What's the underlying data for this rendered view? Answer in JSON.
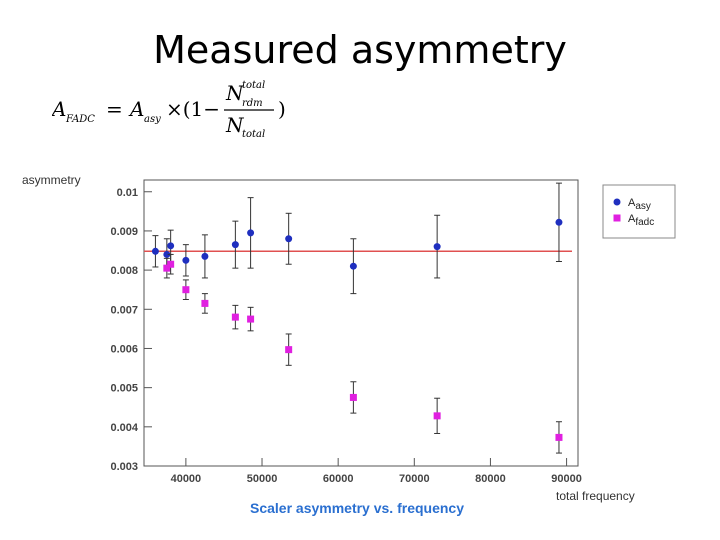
{
  "slide": {
    "title": "Measured asymmetry"
  },
  "formula": {
    "lhs": "A",
    "lhs_sub": "FADC",
    "eq": "=",
    "rhs_a": "A",
    "rhs_a_sub": "asy",
    "times": "×(1−",
    "num": "N",
    "num_sup": "total",
    "num_sub": "rdm",
    "den": "N",
    "den_sub": "total",
    "close": ")"
  },
  "chart_data": {
    "type": "scatter",
    "title": "Scaler asymmetry vs. frequency",
    "xlabel": "total frequency",
    "ylabel": "asymmetry",
    "xlim": [
      34500,
      91500
    ],
    "ylim": [
      0.003,
      0.0103
    ],
    "xticks": [
      40000,
      50000,
      60000,
      70000,
      80000,
      90000
    ],
    "yticks": [
      0.003,
      0.004,
      0.005,
      0.006,
      0.007,
      0.008,
      0.009,
      0.01
    ],
    "grid": false,
    "legend_position": "top-right",
    "reference_line": {
      "y": 0.00848,
      "color": "#e05050"
    },
    "series": [
      {
        "name": "A_asy",
        "color": "#1f2fbf",
        "marker": "circle",
        "x": [
          36000,
          37500,
          38000,
          40000,
          42500,
          46500,
          48500,
          53500,
          62000,
          73000,
          89000
        ],
        "y": [
          0.00848,
          0.0084,
          0.00862,
          0.00825,
          0.00835,
          0.00865,
          0.00895,
          0.0088,
          0.0081,
          0.0086,
          0.00922
        ],
        "err": [
          0.0004,
          0.0004,
          0.0004,
          0.0004,
          0.00055,
          0.0006,
          0.0009,
          0.00065,
          0.0007,
          0.0008,
          0.001
        ]
      },
      {
        "name": "A_fadc",
        "color": "#e020e0",
        "marker": "square",
        "x": [
          37500,
          38000,
          40000,
          42500,
          46500,
          48500,
          53500,
          62000,
          73000,
          89000
        ],
        "y": [
          0.00805,
          0.00815,
          0.0075,
          0.00715,
          0.0068,
          0.00675,
          0.00597,
          0.00475,
          0.00428,
          0.00373
        ],
        "err": [
          0.00025,
          0.00025,
          0.00025,
          0.00025,
          0.0003,
          0.0003,
          0.0004,
          0.0004,
          0.00045,
          0.0004
        ]
      }
    ],
    "legend": [
      {
        "label": "A",
        "sub": "asy",
        "series": 0
      },
      {
        "label": "A",
        "sub": "fadc",
        "series": 1
      }
    ]
  }
}
